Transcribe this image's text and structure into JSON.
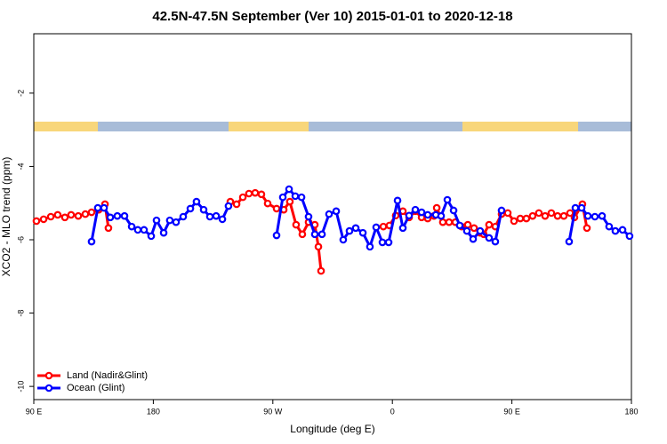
{
  "chart_data": {
    "type": "line",
    "title": "42.5N-47.5N September (Ver 10)   2015-01-01 to 2020-12-18",
    "x_label": "Longitude (deg E)",
    "y_label": "XCO2 - MLO trend (ppm)",
    "xlim": [
      90,
      540
    ],
    "xticks": [
      {
        "value": 90,
        "label": "90 E"
      },
      {
        "value": 180,
        "label": "180"
      },
      {
        "value": 270,
        "label": "90 W"
      },
      {
        "value": 360,
        "label": "0"
      },
      {
        "value": 450,
        "label": "90 E"
      },
      {
        "value": 540,
        "label": "180"
      }
    ],
    "ylim": [
      -10.36,
      -0.38
    ],
    "yticks": [
      -2,
      -4,
      -6,
      -8,
      -10
    ],
    "legend": "bottom-left",
    "series": [
      {
        "name": "Land (Nadir&Glint)",
        "color": "#ff0000",
        "x": [
          92,
          97.4,
          102.8,
          108,
          113.4,
          118.1,
          123.5,
          128.8,
          133.5,
          138.9,
          143.6,
          146.2,
          null,
          238,
          242.7,
          247.4,
          252,
          256.7,
          261.4,
          266.1,
          272.8,
          278.2,
          282.8,
          287.5,
          292.2,
          296.9,
          301.6,
          304.3,
          306.3,
          null,
          353.2,
          357.8,
          362.5,
          367.9,
          372.6,
          377.3,
          382,
          386.6,
          391.3,
          393.4,
          398,
          402.7,
          407.4,
          412.1,
          416.8,
          421.5,
          426.1,
          428.8,
          432.8,
          437.5,
          442.2,
          446.9,
          451.6,
          456.3,
          460.9,
          465.6,
          470.3,
          475,
          479.7,
          484.4,
          489.1,
          493.8,
          497.1,
          503.1,
          506.5
        ],
        "values": [
          -5.49,
          -5.44,
          -5.37,
          -5.32,
          -5.39,
          -5.32,
          -5.35,
          -5.3,
          -5.25,
          -5.18,
          -5.03,
          -5.68,
          null,
          -4.96,
          -5.03,
          -4.84,
          -4.74,
          -4.72,
          -4.76,
          -5.01,
          -5.15,
          -5.18,
          -4.96,
          -5.59,
          -5.85,
          -5.52,
          -5.59,
          -6.19,
          -6.85,
          null,
          -5.64,
          -5.61,
          -5.34,
          -5.22,
          -5.39,
          -5.22,
          -5.39,
          -5.42,
          -5.35,
          -5.13,
          -5.52,
          -5.52,
          -5.52,
          -5.64,
          -5.59,
          -5.68,
          -5.81,
          -5.85,
          -5.59,
          -5.64,
          -5.3,
          -5.27,
          -5.49,
          -5.42,
          -5.42,
          -5.35,
          -5.27,
          -5.35,
          -5.27,
          -5.35,
          -5.35,
          -5.27,
          -5.39,
          -5.03,
          -5.68
        ]
      },
      {
        "name": "Ocean (Glint)",
        "color": "#0000ff",
        "x": [
          133.5,
          138.2,
          142.9,
          147.6,
          152.9,
          158.3,
          163.7,
          168.3,
          173,
          178.4,
          182.4,
          187.8,
          192.4,
          197.1,
          202.5,
          207.9,
          212.5,
          217.9,
          222.6,
          227.3,
          232,
          236.6,
          null,
          272.8,
          277.5,
          282.2,
          286.9,
          291.6,
          296.9,
          301.6,
          307,
          312.3,
          317.7,
          323,
          327.7,
          332.4,
          337.8,
          343.1,
          347.8,
          352.5,
          357.2,
          363.9,
          367.9,
          372.6,
          377.3,
          382,
          386.6,
          392.7,
          396.7,
          401.4,
          406.1,
          410.7,
          416.1,
          420.8,
          426.1,
          432.8,
          437.5,
          442.2,
          null,
          493.1,
          497.8,
          502.5,
          507.2,
          512.5,
          517.9,
          523.2,
          527.9,
          533.3,
          538.6
        ],
        "values": [
          -6.05,
          -5.13,
          -5.13,
          -5.39,
          -5.35,
          -5.35,
          -5.64,
          -5.73,
          -5.73,
          -5.9,
          -5.47,
          -5.81,
          -5.47,
          -5.52,
          -5.37,
          -5.15,
          -4.96,
          -5.18,
          -5.37,
          -5.35,
          -5.44,
          -5.08,
          null,
          -5.88,
          -4.84,
          -4.62,
          -4.81,
          -4.84,
          -5.37,
          -5.85,
          -5.85,
          -5.3,
          -5.22,
          -6.0,
          -5.76,
          -5.68,
          -5.81,
          -6.19,
          -5.66,
          -6.07,
          -6.07,
          -4.93,
          -5.68,
          -5.34,
          -5.18,
          -5.25,
          -5.32,
          -5.32,
          -5.35,
          -4.91,
          -5.2,
          -5.61,
          -5.76,
          -5.98,
          -5.76,
          -5.95,
          -6.05,
          -5.2,
          null,
          -6.05,
          -5.13,
          -5.13,
          -5.35,
          -5.37,
          -5.35,
          -5.64,
          -5.76,
          -5.73,
          -5.9
        ]
      }
    ]
  }
}
